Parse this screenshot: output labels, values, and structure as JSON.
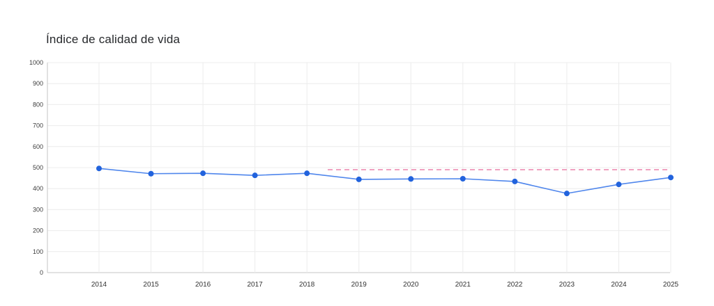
{
  "page": {
    "background_color": "#ffffff"
  },
  "chart_data": {
    "type": "line",
    "title": "Índice de calidad de vida",
    "xlabel": "",
    "ylabel": "",
    "categories": [
      "2014",
      "2015",
      "2016",
      "2017",
      "2018",
      "2019",
      "2020",
      "2021",
      "2022",
      "2023",
      "2024",
      "2025"
    ],
    "series": [
      {
        "name": "Índice de calidad de vida",
        "values": [
          496,
          471,
          473,
          463,
          473,
          444,
          446,
          447,
          434,
          377,
          420,
          453
        ],
        "point_color": "#2263dd",
        "line_color": "#4f86ec"
      }
    ],
    "reference_line": {
      "value": 490,
      "style": "dashed",
      "color": "#f0a2c0",
      "from_category_index": 4.4,
      "to_category_index": 11
    },
    "ylim": [
      0,
      1000
    ],
    "y_ticks": [
      0,
      100,
      200,
      300,
      400,
      500,
      600,
      700,
      800,
      900,
      1000
    ],
    "grid": true,
    "legend_position": "none",
    "colors": {
      "grid": "#ececec",
      "axis": "#c6c6c6",
      "tick_text": "#3d3d3d",
      "title_text": "#26282b"
    }
  }
}
